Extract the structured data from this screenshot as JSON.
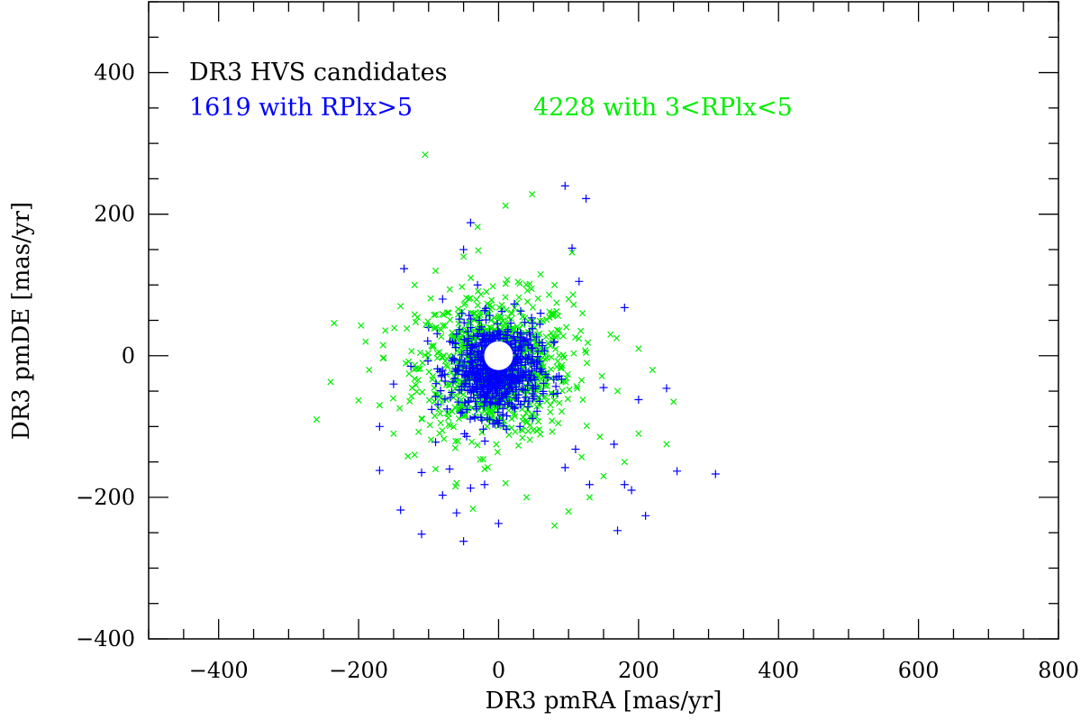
{
  "chart_data": {
    "type": "scatter",
    "xlabel": "DR3 pmRA [mas/yr]",
    "ylabel": "DR3 pmDE [mas/yr]",
    "xlim": [
      -500,
      800
    ],
    "ylim": [
      -400,
      500
    ],
    "x_ticks": [
      -400,
      -200,
      0,
      200,
      400,
      600,
      800
    ],
    "y_ticks": [
      -400,
      -200,
      0,
      200,
      400
    ],
    "grid": false,
    "annotations": {
      "title": "DR3 HVS candidates",
      "blue_label": "1619 with RPlx>5",
      "green_label": "4228 with 3<RPlx<5"
    },
    "colors": {
      "blue": "#0000ff",
      "green": "#00ee00",
      "axis": "#000000"
    },
    "center_hole_radius": 16,
    "series": [
      {
        "marker": "plus",
        "color": "#0000ff",
        "points": [
          [
            95,
            240
          ],
          [
            125,
            222
          ],
          [
            -40,
            188
          ],
          [
            105,
            152
          ],
          [
            -135,
            123
          ],
          [
            -50,
            150
          ],
          [
            115,
            105
          ],
          [
            180,
            68
          ],
          [
            -30,
            100
          ],
          [
            -170,
            -162
          ],
          [
            -110,
            -165
          ],
          [
            -140,
            -218
          ],
          [
            -110,
            -252
          ],
          [
            -50,
            -262
          ],
          [
            -80,
            -197
          ],
          [
            -60,
            -222
          ],
          [
            -40,
            -187
          ],
          [
            0,
            -237
          ],
          [
            -20,
            -182
          ],
          [
            95,
            -158
          ],
          [
            170,
            -247
          ],
          [
            190,
            -190
          ],
          [
            180,
            -182
          ],
          [
            210,
            -226
          ],
          [
            255,
            -163
          ],
          [
            310,
            -167
          ],
          [
            200,
            -62
          ],
          [
            240,
            -46
          ],
          [
            150,
            -45
          ],
          [
            165,
            -125
          ],
          [
            110,
            -132
          ],
          [
            130,
            -182
          ],
          [
            -90,
            -122
          ],
          [
            -70,
            -160
          ],
          [
            -170,
            -100
          ],
          [
            -150,
            -40
          ],
          [
            60,
            60
          ],
          [
            80,
            20
          ],
          [
            -100,
            40
          ],
          [
            -80,
            80
          ]
        ]
      },
      {
        "marker": "cross",
        "color": "#00ee00",
        "points": [
          [
            -105,
            284
          ],
          [
            48,
            228
          ],
          [
            10,
            212
          ],
          [
            -30,
            182
          ],
          [
            105,
            146
          ],
          [
            -260,
            -90
          ],
          [
            -235,
            46
          ],
          [
            -240,
            -37
          ],
          [
            -200,
            -63
          ],
          [
            -185,
            -20
          ],
          [
            -165,
            15
          ],
          [
            -140,
            70
          ],
          [
            -120,
            100
          ],
          [
            -90,
            120
          ],
          [
            -50,
            140
          ],
          [
            60,
            115
          ],
          [
            80,
            100
          ],
          [
            100,
            80
          ],
          [
            120,
            60
          ],
          [
            160,
            30
          ],
          [
            200,
            10
          ],
          [
            220,
            -20
          ],
          [
            250,
            -65
          ],
          [
            240,
            -125
          ],
          [
            200,
            -110
          ],
          [
            180,
            -150
          ],
          [
            150,
            -170
          ],
          [
            130,
            -200
          ],
          [
            100,
            -220
          ],
          [
            80,
            -240
          ],
          [
            40,
            -200
          ],
          [
            10,
            -180
          ],
          [
            -20,
            -160
          ],
          [
            -60,
            -180
          ],
          [
            -90,
            -160
          ],
          [
            -120,
            -140
          ],
          [
            -150,
            -110
          ],
          [
            -170,
            -70
          ],
          [
            -190,
            20
          ],
          [
            170,
            -50
          ]
        ]
      }
    ]
  }
}
